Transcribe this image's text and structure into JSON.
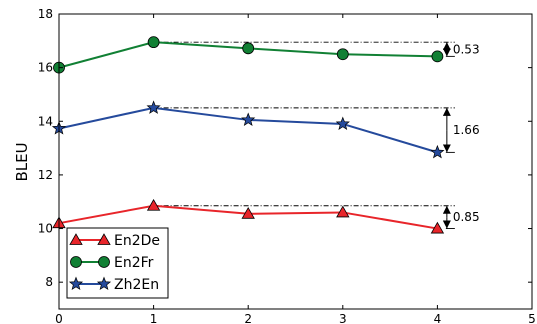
{
  "chart_data": {
    "type": "line",
    "title": "",
    "xlabel": "",
    "ylabel": "BLEU",
    "x": [
      0,
      1,
      2,
      3,
      4
    ],
    "xlim": [
      0,
      5
    ],
    "ylim": [
      7,
      18
    ],
    "xticks": [
      "0",
      "1",
      "2",
      "3",
      "4",
      "5"
    ],
    "yticks": [
      "8",
      "10",
      "12",
      "14",
      "16",
      "18"
    ],
    "grid": false,
    "legend_position": "bottom-left",
    "series": [
      {
        "name": "En2De",
        "values": [
          10.2,
          10.85,
          10.55,
          10.6,
          10.0
        ],
        "color": "#e8252a",
        "marker": "triangle"
      },
      {
        "name": "En2Fr",
        "values": [
          16.0,
          16.95,
          16.72,
          16.5,
          16.42
        ],
        "color": "#118034",
        "marker": "circle"
      },
      {
        "name": "Zh2En",
        "values": [
          13.73,
          14.5,
          14.05,
          13.9,
          12.84
        ],
        "color": "#254a9c",
        "marker": "star"
      }
    ],
    "annotations": [
      {
        "label": "0.53",
        "series": "En2Fr",
        "from": 16.95,
        "to": 16.42
      },
      {
        "label": "1.66",
        "series": "Zh2En",
        "from": 14.5,
        "to": 12.84
      },
      {
        "label": "0.85",
        "series": "En2De",
        "from": 10.85,
        "to": 10.0
      }
    ]
  }
}
